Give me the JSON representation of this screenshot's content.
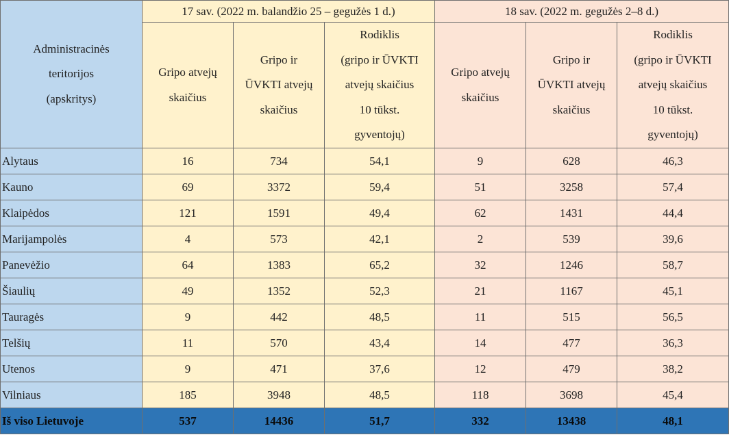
{
  "header": {
    "territory_label": "Administracinės teritorijos (apskritys)",
    "territory_lines": [
      "Administracinės",
      "teritorijos",
      "(apskritys)"
    ],
    "week17_label": "17 sav. (2022 m. balandžio 25 – gegužės 1 d.)",
    "week18_label": "18 sav. (2022 m. gegužės 2–8 d.)",
    "col_flu_lines": [
      "Gripo atvejų",
      "skaičius"
    ],
    "col_flu_ari_lines": [
      "Gripo ir",
      "ŪVKTI atvejų",
      "skaičius"
    ],
    "col_rate_lines": [
      "Rodiklis",
      "(gripo ir ŪVKTI",
      "atvejų skaičius",
      "10 tūkst.",
      "gyventojų)"
    ]
  },
  "rows": [
    {
      "name": "Alytaus",
      "w17_flu": "16",
      "w17_total": "734",
      "w17_rate": "54,1",
      "w18_flu": "9",
      "w18_total": "628",
      "w18_rate": "46,3"
    },
    {
      "name": "Kauno",
      "w17_flu": "69",
      "w17_total": "3372",
      "w17_rate": "59,4",
      "w18_flu": "51",
      "w18_total": "3258",
      "w18_rate": "57,4"
    },
    {
      "name": "Klaipėdos",
      "w17_flu": "121",
      "w17_total": "1591",
      "w17_rate": "49,4",
      "w18_flu": "62",
      "w18_total": "1431",
      "w18_rate": "44,4"
    },
    {
      "name": "Marijampolės",
      "w17_flu": "4",
      "w17_total": "573",
      "w17_rate": "42,1",
      "w18_flu": "2",
      "w18_total": "539",
      "w18_rate": "39,6"
    },
    {
      "name": "Panevėžio",
      "w17_flu": "64",
      "w17_total": "1383",
      "w17_rate": "65,2",
      "w18_flu": "32",
      "w18_total": "1246",
      "w18_rate": "58,7"
    },
    {
      "name": "Šiaulių",
      "w17_flu": "49",
      "w17_total": "1352",
      "w17_rate": "52,3",
      "w18_flu": "21",
      "w18_total": "1167",
      "w18_rate": "45,1"
    },
    {
      "name": "Tauragės",
      "w17_flu": "9",
      "w17_total": "442",
      "w17_rate": "48,5",
      "w18_flu": "11",
      "w18_total": "515",
      "w18_rate": "56,5"
    },
    {
      "name": "Telšių",
      "w17_flu": "11",
      "w17_total": "570",
      "w17_rate": "43,4",
      "w18_flu": "14",
      "w18_total": "477",
      "w18_rate": "36,3"
    },
    {
      "name": "Utenos",
      "w17_flu": "9",
      "w17_total": "471",
      "w17_rate": "37,6",
      "w18_flu": "12",
      "w18_total": "479",
      "w18_rate": "38,2"
    },
    {
      "name": "Vilniaus",
      "w17_flu": "185",
      "w17_total": "3948",
      "w17_rate": "48,5",
      "w18_flu": "118",
      "w18_total": "3698",
      "w18_rate": "45,4"
    }
  ],
  "total": {
    "name": "Iš viso Lietuvoje",
    "w17_flu": "537",
    "w17_total": "14436",
    "w17_rate": "51,7",
    "w18_flu": "332",
    "w18_total": "13438",
    "w18_rate": "48,1"
  },
  "colors": {
    "territory": "#bdd7ee",
    "week17": "#fff2cc",
    "week18": "#fce4d6",
    "total_row": "#2e75b6"
  }
}
